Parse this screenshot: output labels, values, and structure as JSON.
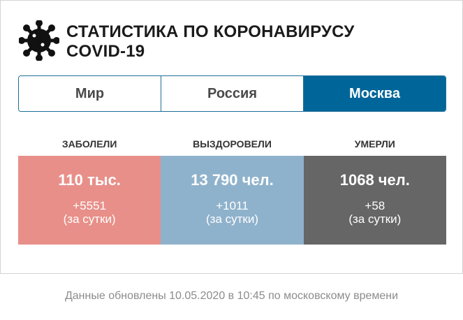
{
  "header": {
    "title_line1": "СТАТИСТИКА ПО КОРОНАВИРУСУ",
    "title_line2": "COVID-19",
    "icon": "virus-icon"
  },
  "tabs": [
    {
      "label": "Мир",
      "active": false
    },
    {
      "label": "Россия",
      "active": false
    },
    {
      "label": "Москва",
      "active": true
    }
  ],
  "stats": [
    {
      "label": "ЗАБОЛЕЛИ",
      "value": "110 тыс.",
      "delta": "+5551",
      "period": "(за сутки)",
      "color": "#e88f89"
    },
    {
      "label": "ВЫЗДОРОВЕЛИ",
      "value": "13 790 чел.",
      "delta": "+1011",
      "period": "(за сутки)",
      "color": "#8fb2cc"
    },
    {
      "label": "УМЕРЛИ",
      "value": "1068 чел.",
      "delta": "+58",
      "period": "(за сутки)",
      "color": "#666666"
    }
  ],
  "colors": {
    "accent": "#006699",
    "tab_border": "#1c6e96"
  },
  "footer": {
    "text": "Данные обновлены 10.05.2020 в 10:45 по московскому времени"
  }
}
